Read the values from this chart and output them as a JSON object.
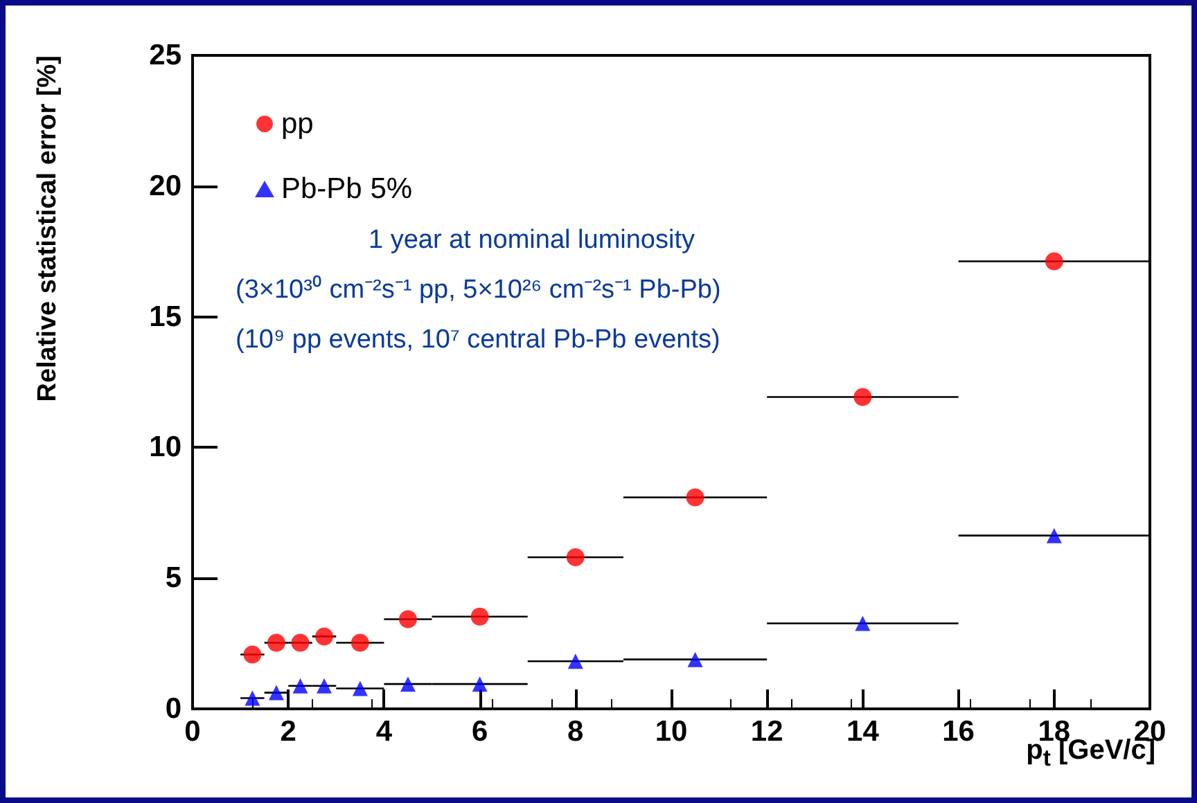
{
  "chart_data": {
    "type": "scatter",
    "xlabel": "p$_{t}$ [GeV/c]",
    "ylabel": "Relative statistical error [%]",
    "x": [
      1.25,
      1.75,
      2.25,
      2.75,
      3.5,
      4.5,
      6,
      8,
      10.5,
      14,
      18
    ],
    "series": [
      {
        "name": "pp",
        "color": "#ff0000",
        "marker": "circle",
        "values": [
          2.08,
          2.53,
          2.53,
          2.77,
          2.53,
          3.43,
          3.53,
          5.8,
          8.09,
          11.93,
          17.12
        ],
        "xerrors": [
          0.25,
          0.25,
          0.25,
          0.25,
          0.5,
          0.5,
          1,
          1,
          1.5,
          2,
          2
        ]
      },
      {
        "name": "Pb-Pb 5%",
        "color": "#0000ff",
        "marker": "triangle",
        "values": [
          0.41,
          0.62,
          0.88,
          0.88,
          0.78,
          0.95,
          0.95,
          1.82,
          1.89,
          3.27,
          6.63
        ],
        "xerrors": [
          0.25,
          0.25,
          0.25,
          0.25,
          0.5,
          0.5,
          1,
          1,
          1.5,
          2,
          2
        ]
      }
    ],
    "xlim": [
      0,
      20
    ],
    "xticks": [
      0,
      2,
      4,
      6,
      8,
      10,
      12,
      14,
      16,
      18,
      20
    ],
    "ylim": [
      0,
      25
    ],
    "yticks": [
      0,
      5,
      10,
      15,
      20,
      25
    ],
    "grid": false,
    "legend": "top left",
    "annotations": [
      "1 year at nominal luminosity",
      "(3×10³⁰ cm⁻²s⁻¹ pp, 5×10²⁶ cm⁻²s⁻¹ Pb-Pb)",
      "(10⁹ pp events, 10⁷ central Pb-Pb events)"
    ]
  }
}
